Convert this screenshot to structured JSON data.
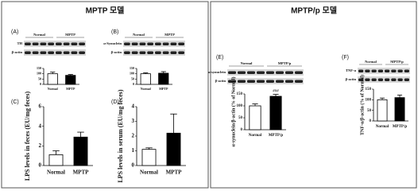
{
  "sections": [
    "MPTP 모델",
    "MPTP/p 모델"
  ],
  "chart_data": [
    {
      "type": "bar",
      "panel": "(A)",
      "section": 0,
      "blot_columns": [
        "Normal",
        "MPTP"
      ],
      "blot_rows": [
        "TH",
        "β-actin"
      ],
      "categories": [
        "Normal",
        "MPTP"
      ],
      "values": [
        100,
        85
      ],
      "errors": [
        15,
        8
      ],
      "colors": [
        "#ffffff",
        "#000000"
      ],
      "ylim": [
        0,
        150
      ],
      "yticks": [
        0,
        50,
        100,
        150
      ]
    },
    {
      "type": "bar",
      "panel": "(B)",
      "section": 0,
      "blot_columns": [
        "Normal",
        "MPTP"
      ],
      "blot_rows": [
        "α-Synuclein",
        "β-actin"
      ],
      "categories": [
        "Normal",
        "MPTP"
      ],
      "values": [
        100,
        105
      ],
      "errors": [
        8,
        15
      ],
      "colors": [
        "#ffffff",
        "#000000"
      ],
      "ylim": [
        0,
        150
      ],
      "yticks": [
        0,
        50,
        100,
        150
      ]
    },
    {
      "type": "bar",
      "panel": "(C)",
      "section": 0,
      "y_label": "LPS levels in feces (EU/mg feces)",
      "categories": [
        "Normal",
        "MPTP"
      ],
      "values": [
        1.1,
        2.9
      ],
      "errors": [
        0.4,
        0.5
      ],
      "colors": [
        "#ffffff",
        "#000000"
      ],
      "ylim": [
        0,
        6
      ],
      "yticks": [
        0,
        2,
        4,
        6
      ]
    },
    {
      "type": "bar",
      "panel": "(D)",
      "section": 0,
      "y_label": "LPS levels in serum (EU/mg feces)",
      "categories": [
        "Normal",
        "MPTP"
      ],
      "values": [
        1.1,
        2.2
      ],
      "errors": [
        0.1,
        1.3
      ],
      "colors": [
        "#ffffff",
        "#000000"
      ],
      "ylim": [
        0,
        4
      ],
      "yticks": [
        0,
        1,
        2,
        3,
        4
      ]
    },
    {
      "type": "bar",
      "panel": "(E)",
      "section": 1,
      "blot_columns": [
        "Normal",
        "MPTP/p"
      ],
      "blot_rows": [
        "α-synuclein",
        "β-actin"
      ],
      "y_label": "α-synuclein/β-actin (% of Normal)",
      "categories": [
        "Normal",
        "MPTP/p"
      ],
      "values": [
        100,
        140
      ],
      "errors": [
        8,
        8
      ],
      "colors": [
        "#ffffff",
        "#000000"
      ],
      "annotation": "###",
      "ylim": [
        0,
        150
      ],
      "yticks": [
        0,
        50,
        100,
        150
      ]
    },
    {
      "type": "bar",
      "panel": "(F)",
      "section": 1,
      "blot_columns": [
        "Normal",
        "MPTP/p"
      ],
      "blot_rows": [
        "TNF-α",
        "β-actin"
      ],
      "y_label": "TNF-α/β-actin (% of Normal)",
      "categories": [
        "Normal",
        "MPTP/p"
      ],
      "values": [
        100,
        110
      ],
      "errors": [
        8,
        12
      ],
      "colors": [
        "#ffffff",
        "#000000"
      ],
      "ylim": [
        0,
        150
      ],
      "yticks": [
        0,
        50,
        100,
        150
      ]
    }
  ]
}
